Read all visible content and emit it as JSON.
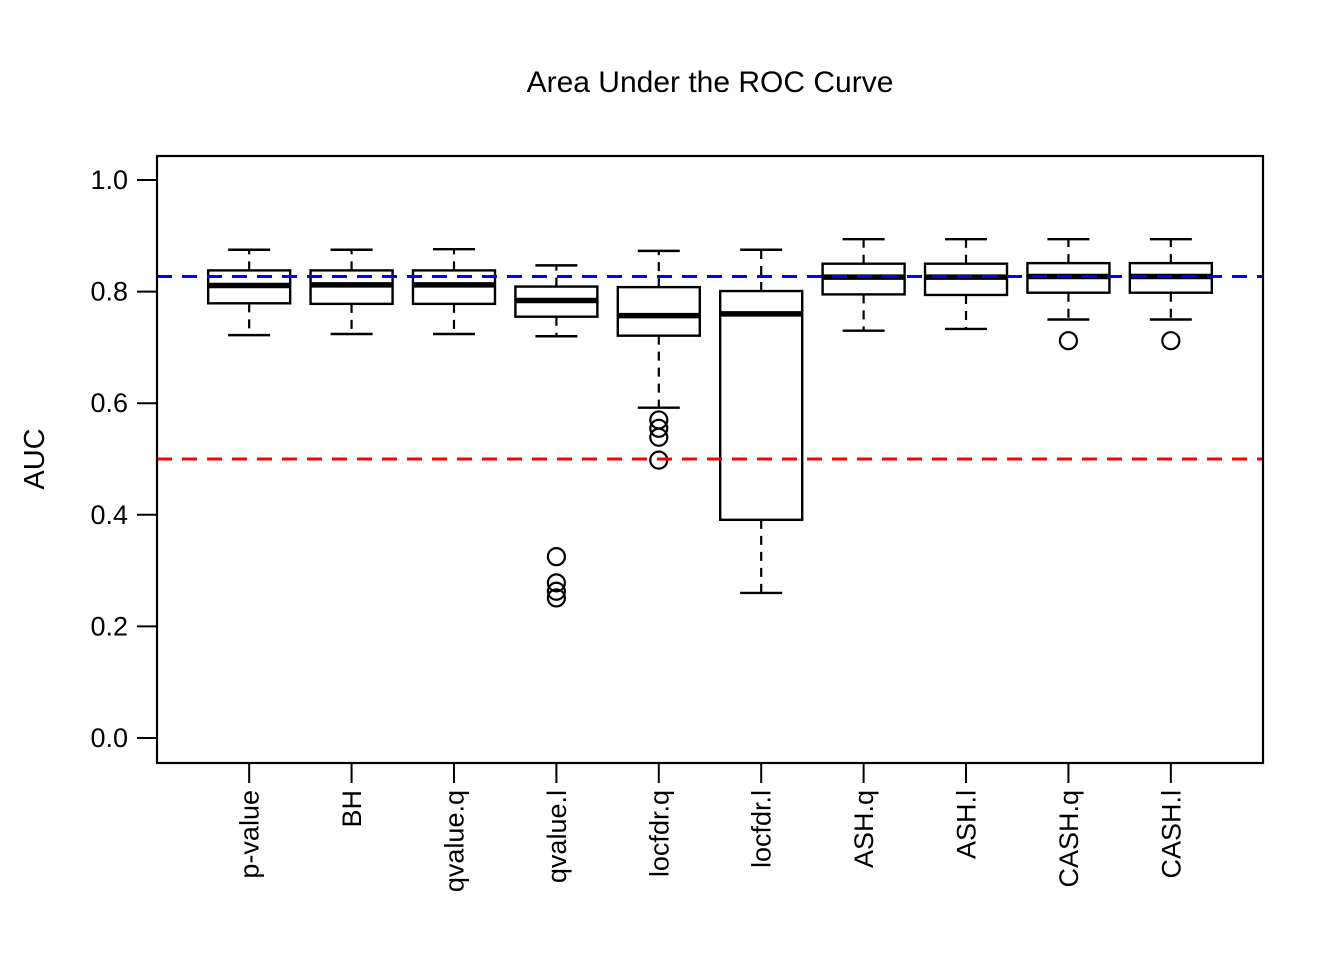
{
  "figure": {
    "title": "Area Under the ROC Curve",
    "ylabel": "AUC",
    "background_color": "#ffffff",
    "foreground_color": "#000000"
  },
  "chart_data": {
    "type": "boxplot",
    "title": "Area Under the ROC Curve",
    "xlabel": "",
    "ylabel": "AUC",
    "ylim": [
      0,
      1
    ],
    "y_ticks": [
      0.0,
      0.2,
      0.4,
      0.6,
      0.8,
      1.0
    ],
    "y_tick_labels": [
      "0.0",
      "0.2",
      "0.4",
      "0.6",
      "0.8",
      "1.0"
    ],
    "grid": false,
    "legend": "none",
    "x_tick_label_rotation": 90,
    "categories": [
      "p-value",
      "BH",
      "qvalue.q",
      "qvalue.l",
      "locfdr.q",
      "locfdr.l",
      "ASH.q",
      "ASH.l",
      "CASH.q",
      "CASH.l"
    ],
    "boxes": [
      {
        "label": "p-value",
        "whisker_low": 0.722,
        "q1": 0.779,
        "median": 0.811,
        "q3": 0.838,
        "whisker_high": 0.875,
        "outliers": []
      },
      {
        "label": "BH",
        "whisker_low": 0.724,
        "q1": 0.778,
        "median": 0.812,
        "q3": 0.838,
        "whisker_high": 0.875,
        "outliers": []
      },
      {
        "label": "qvalue.q",
        "whisker_low": 0.724,
        "q1": 0.778,
        "median": 0.812,
        "q3": 0.838,
        "whisker_high": 0.876,
        "outliers": []
      },
      {
        "label": "qvalue.l",
        "whisker_low": 0.72,
        "q1": 0.755,
        "median": 0.784,
        "q3": 0.809,
        "whisker_high": 0.847,
        "outliers": [
          0.325,
          0.278,
          0.263,
          0.251
        ]
      },
      {
        "label": "locfdr.q",
        "whisker_low": 0.592,
        "q1": 0.721,
        "median": 0.757,
        "q3": 0.808,
        "whisker_high": 0.873,
        "outliers": [
          0.57,
          0.555,
          0.539,
          0.498
        ]
      },
      {
        "label": "locfdr.l",
        "whisker_low": 0.26,
        "q1": 0.391,
        "median": 0.76,
        "q3": 0.801,
        "whisker_high": 0.875,
        "outliers": []
      },
      {
        "label": "ASH.q",
        "whisker_low": 0.73,
        "q1": 0.795,
        "median": 0.826,
        "q3": 0.85,
        "whisker_high": 0.894,
        "outliers": []
      },
      {
        "label": "ASH.l",
        "whisker_low": 0.733,
        "q1": 0.794,
        "median": 0.826,
        "q3": 0.85,
        "whisker_high": 0.894,
        "outliers": []
      },
      {
        "label": "CASH.q",
        "whisker_low": 0.75,
        "q1": 0.798,
        "median": 0.827,
        "q3": 0.851,
        "whisker_high": 0.894,
        "outliers": [
          0.712
        ]
      },
      {
        "label": "CASH.l",
        "whisker_low": 0.75,
        "q1": 0.798,
        "median": 0.827,
        "q3": 0.851,
        "whisker_high": 0.894,
        "outliers": [
          0.712
        ]
      }
    ],
    "reference_lines": [
      {
        "name": "best-auc-line",
        "value": 0.827,
        "color": "#0000ff",
        "style": "dashed"
      },
      {
        "name": "chance-line",
        "value": 0.5,
        "color": "#ff0000",
        "style": "dashed"
      }
    ],
    "box_fill": "#ffffff",
    "box_stroke": "#000000"
  }
}
